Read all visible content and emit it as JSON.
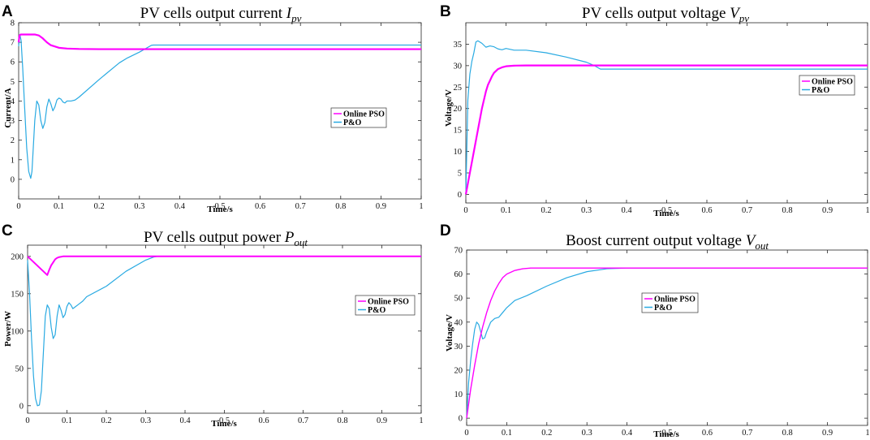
{
  "chart_data": [
    {
      "id": "A",
      "type": "line",
      "panel_letter": "A",
      "title": "PV cells output current",
      "title_symbol": "I",
      "title_subscript": "pv",
      "xlabel": "Time/s",
      "ylabel": "Current/A",
      "xlim": [
        0,
        1
      ],
      "ylim": [
        -1,
        8
      ],
      "xticks": [
        0,
        0.1,
        0.2,
        0.3,
        0.4,
        0.5,
        0.6,
        0.7,
        0.8,
        0.9,
        1
      ],
      "xtick_labels": [
        "0",
        "0.1",
        "0.2",
        "0.3",
        "0.4",
        "0.5",
        "0.6",
        "0.7",
        "0.8",
        "0.9",
        "1"
      ],
      "yticks": [
        0,
        1,
        2,
        3,
        4,
        5,
        6,
        7,
        8
      ],
      "ytick_labels": [
        "0",
        "1",
        "2",
        "3",
        "4",
        "5",
        "6",
        "7",
        "8"
      ],
      "legend": [
        "Online PSO",
        "P&O"
      ],
      "legend_position": "center-right",
      "series": [
        {
          "name": "Online PSO",
          "color": "#ff00ff",
          "width": 2.2,
          "x": [
            0,
            0.002,
            0.005,
            0.01,
            0.02,
            0.03,
            0.04,
            0.05,
            0.06,
            0.07,
            0.08,
            0.1,
            0.12,
            0.15,
            0.2,
            0.3,
            0.5,
            1.0
          ],
          "y": [
            7.0,
            7.35,
            7.4,
            7.4,
            7.4,
            7.4,
            7.4,
            7.35,
            7.2,
            7.0,
            6.85,
            6.72,
            6.68,
            6.66,
            6.65,
            6.65,
            6.65,
            6.65
          ]
        },
        {
          "name": "P&O",
          "color": "#29aae2",
          "width": 1.2,
          "x": [
            0,
            0.003,
            0.006,
            0.01,
            0.015,
            0.02,
            0.025,
            0.03,
            0.033,
            0.036,
            0.04,
            0.045,
            0.05,
            0.055,
            0.06,
            0.065,
            0.07,
            0.075,
            0.08,
            0.085,
            0.09,
            0.095,
            0.1,
            0.105,
            0.11,
            0.115,
            0.12,
            0.13,
            0.14,
            0.15,
            0.2,
            0.25,
            0.27,
            0.3,
            0.33,
            0.335,
            0.34,
            0.4,
            0.5,
            0.6,
            0.7,
            0.8,
            0.9,
            1.0
          ],
          "y": [
            6.8,
            7.4,
            7.1,
            5.7,
            3.6,
            1.6,
            0.4,
            0.05,
            0.4,
            1.5,
            3.0,
            4.0,
            3.8,
            3.0,
            2.6,
            2.9,
            3.7,
            4.1,
            3.85,
            3.5,
            3.7,
            4.05,
            4.15,
            4.1,
            3.95,
            3.9,
            4.0,
            4.0,
            4.05,
            4.2,
            5.1,
            5.95,
            6.2,
            6.5,
            6.85,
            6.86,
            6.86,
            6.86,
            6.86,
            6.86,
            6.86,
            6.86,
            6.86,
            6.86
          ]
        }
      ]
    },
    {
      "id": "B",
      "type": "line",
      "panel_letter": "B",
      "title": "PV cells output voltage",
      "title_symbol": "V",
      "title_subscript": "pv",
      "xlabel": "Time/s",
      "ylabel": "Voltage/V",
      "xlim": [
        0,
        1
      ],
      "ylim": [
        -2,
        40
      ],
      "xticks": [
        0,
        0.1,
        0.2,
        0.3,
        0.4,
        0.5,
        0.6,
        0.7,
        0.8,
        0.9,
        1
      ],
      "xtick_labels": [
        "0",
        "0.1",
        "0.2",
        "0.3",
        "0.4",
        "0.5",
        "0.6",
        "0.7",
        "0.8",
        "0.9",
        "1"
      ],
      "yticks": [
        0,
        5,
        10,
        15,
        20,
        25,
        30,
        35
      ],
      "ytick_labels": [
        "0",
        "5",
        "10",
        "15",
        "20",
        "25",
        "30",
        "35"
      ],
      "legend": [
        "Online PSO",
        "P&O"
      ],
      "legend_position": "center-right",
      "series": [
        {
          "name": "Online PSO",
          "color": "#ff00ff",
          "width": 2.2,
          "x": [
            0,
            0.04,
            0.05,
            0.055,
            0.06,
            0.065,
            0.07,
            0.08,
            0.09,
            0.1,
            0.12,
            0.15,
            0.2,
            0.3,
            0.5,
            1.0
          ],
          "y": [
            0,
            20,
            24,
            25.5,
            26.5,
            27.5,
            28.3,
            29.2,
            29.6,
            29.85,
            30.0,
            30.05,
            30.05,
            30.05,
            30.05,
            30.05
          ]
        },
        {
          "name": "P&O",
          "color": "#29aae2",
          "width": 1.2,
          "x": [
            0,
            0.005,
            0.01,
            0.015,
            0.02,
            0.025,
            0.03,
            0.04,
            0.05,
            0.06,
            0.07,
            0.08,
            0.09,
            0.1,
            0.12,
            0.15,
            0.2,
            0.25,
            0.3,
            0.32,
            0.335,
            0.34,
            0.4,
            0.5,
            0.6,
            0.7,
            0.8,
            0.9,
            1.0
          ],
          "y": [
            0,
            22,
            28,
            31,
            33,
            35.5,
            35.8,
            35.2,
            34.3,
            34.6,
            34.4,
            33.9,
            33.7,
            34.0,
            33.6,
            33.6,
            33.0,
            32.0,
            30.8,
            30.0,
            29.2,
            29.2,
            29.2,
            29.2,
            29.2,
            29.2,
            29.2,
            29.2,
            29.2
          ]
        }
      ]
    },
    {
      "id": "C",
      "type": "line",
      "panel_letter": "C",
      "title": "PV cells output power",
      "title_symbol": "P",
      "title_subscript": "out",
      "xlabel": "Time/s",
      "ylabel": "Power/W",
      "xlim": [
        0,
        1
      ],
      "ylim": [
        -10,
        215
      ],
      "xticks": [
        0,
        0.1,
        0.2,
        0.3,
        0.4,
        0.5,
        0.6,
        0.7,
        0.8,
        0.9,
        1
      ],
      "xtick_labels": [
        "0",
        "0.1",
        "0.2",
        "0.3",
        "0.4",
        "0.5",
        "0.6",
        "0.7",
        "0.8",
        "0.9",
        "1"
      ],
      "yticks": [
        0,
        50,
        100,
        150,
        200
      ],
      "ytick_labels": [
        "0",
        "50",
        "100",
        "150",
        "200"
      ],
      "legend": [
        "Online PSO",
        "P&O"
      ],
      "legend_position": "center-right",
      "series": [
        {
          "name": "Online PSO",
          "color": "#ff00ff",
          "width": 2.0,
          "x": [
            0,
            0.05,
            0.055,
            0.06,
            0.065,
            0.07,
            0.075,
            0.08,
            0.09,
            0.1,
            0.2,
            0.3,
            0.5,
            1.0
          ],
          "y": [
            200,
            175,
            182,
            188,
            192,
            196,
            198,
            199,
            200,
            200,
            200,
            200,
            200,
            200
          ]
        },
        {
          "name": "P&O",
          "color": "#29aae2",
          "width": 1.2,
          "x": [
            0,
            0.005,
            0.01,
            0.015,
            0.02,
            0.025,
            0.03,
            0.035,
            0.04,
            0.045,
            0.05,
            0.055,
            0.06,
            0.065,
            0.07,
            0.075,
            0.08,
            0.085,
            0.09,
            0.095,
            0.1,
            0.105,
            0.11,
            0.115,
            0.12,
            0.13,
            0.14,
            0.15,
            0.2,
            0.25,
            0.3,
            0.32,
            0.33,
            0.4,
            0.5,
            1.0
          ],
          "y": [
            195,
            150,
            90,
            40,
            10,
            0,
            1,
            20,
            70,
            120,
            135,
            130,
            105,
            90,
            95,
            120,
            135,
            128,
            118,
            122,
            133,
            138,
            135,
            130,
            132,
            136,
            140,
            146,
            160,
            180,
            195,
            199,
            200,
            200,
            200,
            200
          ]
        }
      ]
    },
    {
      "id": "D",
      "type": "line",
      "panel_letter": "D",
      "title": "Boost current output voltage",
      "title_symbol": "V",
      "title_subscript": "out",
      "xlabel": "Time/s",
      "ylabel": "Voltage/V",
      "xlim": [
        0,
        1
      ],
      "ylim": [
        -3,
        70
      ],
      "xticks": [
        0,
        0.1,
        0.2,
        0.3,
        0.4,
        0.5,
        0.6,
        0.7,
        0.8,
        0.9,
        1
      ],
      "xtick_labels": [
        "0",
        "0.1",
        "0.2",
        "0.3",
        "0.4",
        "0.5",
        "0.6",
        "0.7",
        "0.8",
        "0.9",
        "1"
      ],
      "yticks": [
        0,
        10,
        20,
        30,
        40,
        50,
        60,
        70
      ],
      "ytick_labels": [
        "0",
        "10",
        "20",
        "30",
        "40",
        "50",
        "60",
        "70"
      ],
      "legend": [
        "Online PSO",
        "P&O"
      ],
      "legend_position": "center-right",
      "series": [
        {
          "name": "Online PSO",
          "color": "#ff00ff",
          "width": 1.4,
          "x": [
            0,
            0.01,
            0.02,
            0.03,
            0.04,
            0.05,
            0.06,
            0.07,
            0.08,
            0.09,
            0.1,
            0.12,
            0.14,
            0.16,
            0.2,
            0.3,
            0.5,
            1.0
          ],
          "y": [
            0,
            12,
            22,
            31,
            38,
            44,
            49,
            53,
            56,
            58.5,
            60,
            61.5,
            62.2,
            62.5,
            62.5,
            62.5,
            62.5,
            62.5
          ]
        },
        {
          "name": "P&O",
          "color": "#29aae2",
          "width": 1.2,
          "x": [
            0,
            0.005,
            0.01,
            0.015,
            0.02,
            0.025,
            0.03,
            0.035,
            0.04,
            0.045,
            0.05,
            0.06,
            0.07,
            0.08,
            0.09,
            0.1,
            0.12,
            0.15,
            0.2,
            0.25,
            0.3,
            0.35,
            0.4,
            0.5,
            1.0
          ],
          "y": [
            0,
            15,
            24,
            31,
            37,
            40,
            39,
            36,
            33,
            33.5,
            36,
            40,
            41.5,
            42,
            44,
            46,
            49,
            51,
            55,
            58.5,
            61,
            62.2,
            62.5,
            62.5,
            62.5
          ]
        }
      ]
    }
  ]
}
